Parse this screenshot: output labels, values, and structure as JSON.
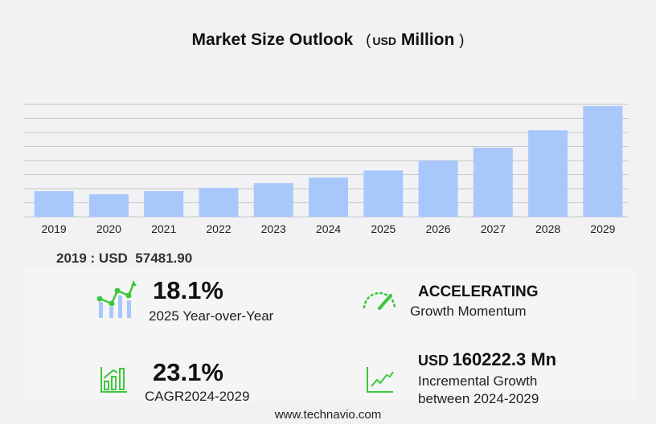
{
  "title": {
    "text": "Market Size Outlook",
    "unit": "USD",
    "unit_suffix": "Million",
    "open": "(",
    "close": ")"
  },
  "chart_data": {
    "type": "bar",
    "title": "Market Size Outlook (USD Million)",
    "categories": [
      "2019",
      "2020",
      "2021",
      "2022",
      "2023",
      "2024",
      "2025",
      "2026",
      "2027",
      "2028",
      "2029"
    ],
    "values": [
      57481.9,
      50600,
      57500,
      64700,
      75500,
      88000,
      104000,
      126000,
      155000,
      194000,
      248200
    ],
    "ylim": [
      0,
      252000
    ],
    "grid": true,
    "color": "#a8c8fc"
  },
  "base_year": {
    "label": "2019 : USD",
    "value": "57481.90"
  },
  "stats": {
    "yoy": {
      "value": "18.1%",
      "label": "2025 Year-over-Year",
      "icon": "growth-chart-icon"
    },
    "momentum": {
      "value": "ACCELERATING",
      "label": "Growth Momentum",
      "icon": "speedometer-icon"
    },
    "cagr": {
      "value": "23.1%",
      "label": "CAGR",
      "period": "2024-2029",
      "icon": "bar-growth-icon"
    },
    "incremental": {
      "prefix": "USD",
      "value": "160222.3 Mn",
      "label1": "Incremental Growth",
      "label2": "between 2024-2029",
      "icon": "trend-line-icon"
    }
  },
  "accent": "#3cc83c",
  "footer": "www.technavio.com"
}
